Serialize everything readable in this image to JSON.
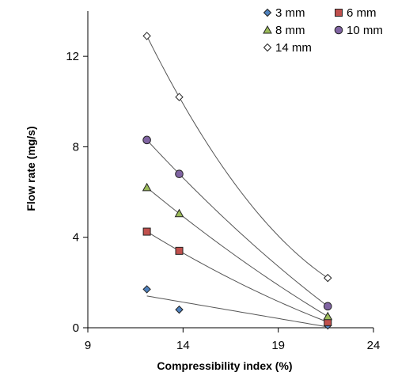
{
  "chart_data": {
    "type": "scatter",
    "title": "",
    "xlabel": "Compressibility index (%)",
    "ylabel": "Flow rate (mg/s)",
    "xlim": [
      9,
      24
    ],
    "ylim": [
      0,
      14
    ],
    "xticks": [
      9,
      14,
      19,
      24
    ],
    "yticks": [
      0,
      4,
      8,
      12
    ],
    "grid": false,
    "legend_position": "top-right",
    "trendlines": true,
    "series": [
      {
        "name": "3 mm",
        "marker": "diamond",
        "color": "#4f81bd",
        "x": [
          12.1,
          13.8,
          21.6
        ],
        "y": [
          1.7,
          0.8,
          0.1
        ]
      },
      {
        "name": "6 mm",
        "marker": "square",
        "color": "#c0504d",
        "x": [
          12.1,
          13.8,
          21.6
        ],
        "y": [
          4.25,
          3.4,
          0.25
        ]
      },
      {
        "name": "8 mm",
        "marker": "triangle",
        "color": "#9bbb59",
        "x": [
          12.1,
          13.8,
          21.6
        ],
        "y": [
          6.2,
          5.05,
          0.5
        ]
      },
      {
        "name": "10 mm",
        "marker": "circle",
        "color": "#8064a2",
        "x": [
          12.1,
          13.8,
          21.6
        ],
        "y": [
          8.3,
          6.8,
          0.95
        ]
      },
      {
        "name": "14 mm",
        "marker": "diamond",
        "color": "#ffffff",
        "x": [
          12.1,
          13.8,
          21.6
        ],
        "y": [
          12.9,
          10.2,
          2.2
        ]
      }
    ]
  }
}
